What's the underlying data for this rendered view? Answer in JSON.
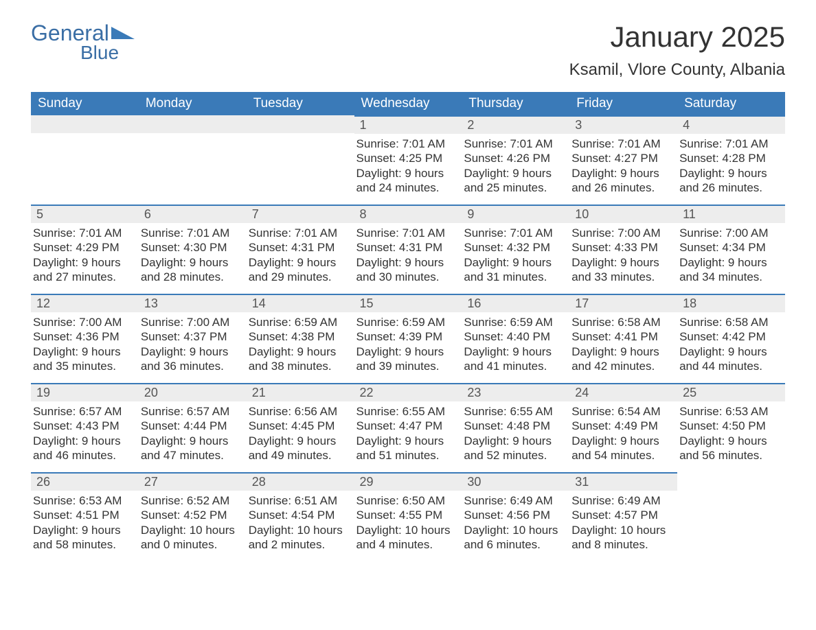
{
  "logo": {
    "general": "General",
    "blue": "Blue",
    "flag_color": "#3a7ab8"
  },
  "title": "January 2025",
  "location": "Ksamil, Vlore County, Albania",
  "colors": {
    "header_bg": "#3a7ab8",
    "header_text": "#ffffff",
    "day_number_bg": "#ededed",
    "day_number_text": "#555555",
    "body_text": "#333333",
    "border": "#3a7ab8",
    "page_bg": "#ffffff",
    "logo_text": "#3a6ea5"
  },
  "fonts": {
    "title_size": 42,
    "location_size": 24,
    "header_size": 19,
    "day_number_size": 18,
    "body_size": 17
  },
  "week_headers": [
    "Sunday",
    "Monday",
    "Tuesday",
    "Wednesday",
    "Thursday",
    "Friday",
    "Saturday"
  ],
  "weeks": [
    [
      null,
      null,
      null,
      {
        "n": "1",
        "sunrise": "Sunrise: 7:01 AM",
        "sunset": "Sunset: 4:25 PM",
        "d1": "Daylight: 9 hours",
        "d2": "and 24 minutes."
      },
      {
        "n": "2",
        "sunrise": "Sunrise: 7:01 AM",
        "sunset": "Sunset: 4:26 PM",
        "d1": "Daylight: 9 hours",
        "d2": "and 25 minutes."
      },
      {
        "n": "3",
        "sunrise": "Sunrise: 7:01 AM",
        "sunset": "Sunset: 4:27 PM",
        "d1": "Daylight: 9 hours",
        "d2": "and 26 minutes."
      },
      {
        "n": "4",
        "sunrise": "Sunrise: 7:01 AM",
        "sunset": "Sunset: 4:28 PM",
        "d1": "Daylight: 9 hours",
        "d2": "and 26 minutes."
      }
    ],
    [
      {
        "n": "5",
        "sunrise": "Sunrise: 7:01 AM",
        "sunset": "Sunset: 4:29 PM",
        "d1": "Daylight: 9 hours",
        "d2": "and 27 minutes."
      },
      {
        "n": "6",
        "sunrise": "Sunrise: 7:01 AM",
        "sunset": "Sunset: 4:30 PM",
        "d1": "Daylight: 9 hours",
        "d2": "and 28 minutes."
      },
      {
        "n": "7",
        "sunrise": "Sunrise: 7:01 AM",
        "sunset": "Sunset: 4:31 PM",
        "d1": "Daylight: 9 hours",
        "d2": "and 29 minutes."
      },
      {
        "n": "8",
        "sunrise": "Sunrise: 7:01 AM",
        "sunset": "Sunset: 4:31 PM",
        "d1": "Daylight: 9 hours",
        "d2": "and 30 minutes."
      },
      {
        "n": "9",
        "sunrise": "Sunrise: 7:01 AM",
        "sunset": "Sunset: 4:32 PM",
        "d1": "Daylight: 9 hours",
        "d2": "and 31 minutes."
      },
      {
        "n": "10",
        "sunrise": "Sunrise: 7:00 AM",
        "sunset": "Sunset: 4:33 PM",
        "d1": "Daylight: 9 hours",
        "d2": "and 33 minutes."
      },
      {
        "n": "11",
        "sunrise": "Sunrise: 7:00 AM",
        "sunset": "Sunset: 4:34 PM",
        "d1": "Daylight: 9 hours",
        "d2": "and 34 minutes."
      }
    ],
    [
      {
        "n": "12",
        "sunrise": "Sunrise: 7:00 AM",
        "sunset": "Sunset: 4:36 PM",
        "d1": "Daylight: 9 hours",
        "d2": "and 35 minutes."
      },
      {
        "n": "13",
        "sunrise": "Sunrise: 7:00 AM",
        "sunset": "Sunset: 4:37 PM",
        "d1": "Daylight: 9 hours",
        "d2": "and 36 minutes."
      },
      {
        "n": "14",
        "sunrise": "Sunrise: 6:59 AM",
        "sunset": "Sunset: 4:38 PM",
        "d1": "Daylight: 9 hours",
        "d2": "and 38 minutes."
      },
      {
        "n": "15",
        "sunrise": "Sunrise: 6:59 AM",
        "sunset": "Sunset: 4:39 PM",
        "d1": "Daylight: 9 hours",
        "d2": "and 39 minutes."
      },
      {
        "n": "16",
        "sunrise": "Sunrise: 6:59 AM",
        "sunset": "Sunset: 4:40 PM",
        "d1": "Daylight: 9 hours",
        "d2": "and 41 minutes."
      },
      {
        "n": "17",
        "sunrise": "Sunrise: 6:58 AM",
        "sunset": "Sunset: 4:41 PM",
        "d1": "Daylight: 9 hours",
        "d2": "and 42 minutes."
      },
      {
        "n": "18",
        "sunrise": "Sunrise: 6:58 AM",
        "sunset": "Sunset: 4:42 PM",
        "d1": "Daylight: 9 hours",
        "d2": "and 44 minutes."
      }
    ],
    [
      {
        "n": "19",
        "sunrise": "Sunrise: 6:57 AM",
        "sunset": "Sunset: 4:43 PM",
        "d1": "Daylight: 9 hours",
        "d2": "and 46 minutes."
      },
      {
        "n": "20",
        "sunrise": "Sunrise: 6:57 AM",
        "sunset": "Sunset: 4:44 PM",
        "d1": "Daylight: 9 hours",
        "d2": "and 47 minutes."
      },
      {
        "n": "21",
        "sunrise": "Sunrise: 6:56 AM",
        "sunset": "Sunset: 4:45 PM",
        "d1": "Daylight: 9 hours",
        "d2": "and 49 minutes."
      },
      {
        "n": "22",
        "sunrise": "Sunrise: 6:55 AM",
        "sunset": "Sunset: 4:47 PM",
        "d1": "Daylight: 9 hours",
        "d2": "and 51 minutes."
      },
      {
        "n": "23",
        "sunrise": "Sunrise: 6:55 AM",
        "sunset": "Sunset: 4:48 PM",
        "d1": "Daylight: 9 hours",
        "d2": "and 52 minutes."
      },
      {
        "n": "24",
        "sunrise": "Sunrise: 6:54 AM",
        "sunset": "Sunset: 4:49 PM",
        "d1": "Daylight: 9 hours",
        "d2": "and 54 minutes."
      },
      {
        "n": "25",
        "sunrise": "Sunrise: 6:53 AM",
        "sunset": "Sunset: 4:50 PM",
        "d1": "Daylight: 9 hours",
        "d2": "and 56 minutes."
      }
    ],
    [
      {
        "n": "26",
        "sunrise": "Sunrise: 6:53 AM",
        "sunset": "Sunset: 4:51 PM",
        "d1": "Daylight: 9 hours",
        "d2": "and 58 minutes."
      },
      {
        "n": "27",
        "sunrise": "Sunrise: 6:52 AM",
        "sunset": "Sunset: 4:52 PM",
        "d1": "Daylight: 10 hours",
        "d2": "and 0 minutes."
      },
      {
        "n": "28",
        "sunrise": "Sunrise: 6:51 AM",
        "sunset": "Sunset: 4:54 PM",
        "d1": "Daylight: 10 hours",
        "d2": "and 2 minutes."
      },
      {
        "n": "29",
        "sunrise": "Sunrise: 6:50 AM",
        "sunset": "Sunset: 4:55 PM",
        "d1": "Daylight: 10 hours",
        "d2": "and 4 minutes."
      },
      {
        "n": "30",
        "sunrise": "Sunrise: 6:49 AM",
        "sunset": "Sunset: 4:56 PM",
        "d1": "Daylight: 10 hours",
        "d2": "and 6 minutes."
      },
      {
        "n": "31",
        "sunrise": "Sunrise: 6:49 AM",
        "sunset": "Sunset: 4:57 PM",
        "d1": "Daylight: 10 hours",
        "d2": "and 8 minutes."
      },
      null
    ]
  ]
}
